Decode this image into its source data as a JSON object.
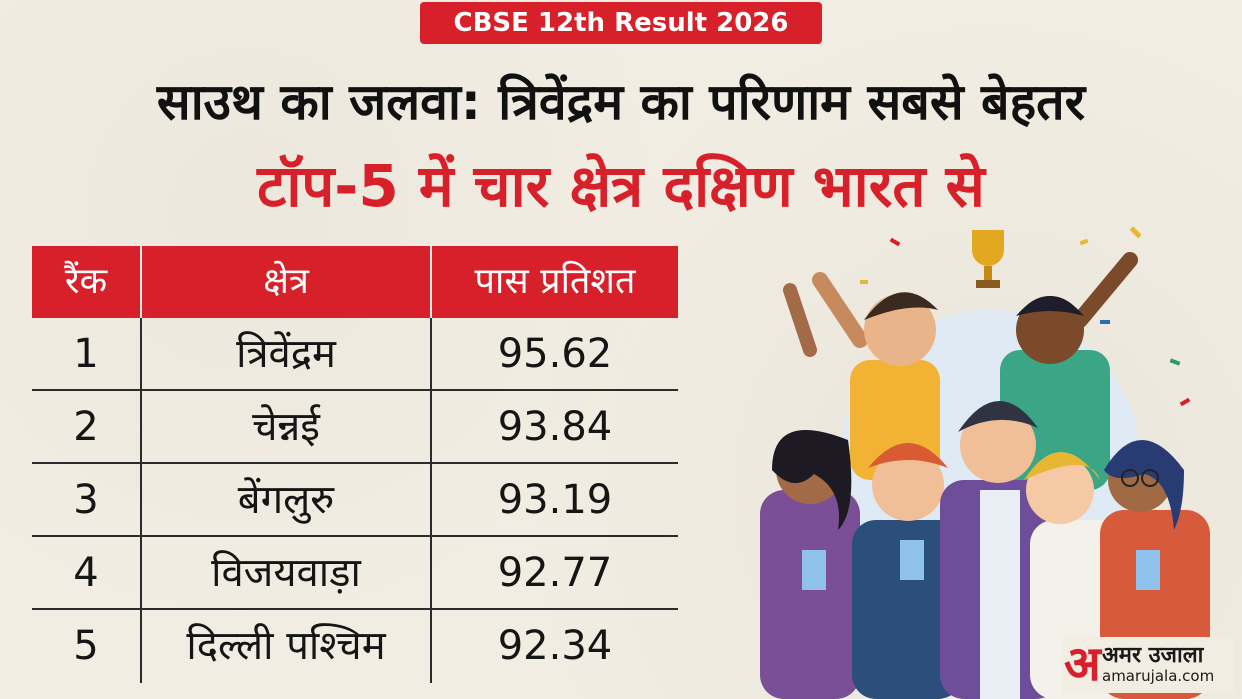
{
  "badge": "CBSE 12th Result 2026",
  "headline": "साउथ का जलवा: त्रिवेंद्रम का परिणाम सबसे बेहतर",
  "subheadline": "टॉप-5 में चार क्षेत्र दक्षिण भारत से",
  "table": {
    "headers": [
      "रैंक",
      "क्षेत्र",
      "पास प्रतिशत"
    ],
    "rows": [
      [
        "1",
        "त्रिवेंद्रम",
        "95.62"
      ],
      [
        "2",
        "चेन्नई",
        "93.84"
      ],
      [
        "3",
        "बेंगलुरु",
        "93.19"
      ],
      [
        "4",
        "विजयवाड़ा",
        "92.77"
      ],
      [
        "5",
        "दिल्ली पश्चिम",
        "92.34"
      ]
    ]
  },
  "logo": {
    "mark": "अ",
    "name": "अमर उजाला",
    "url": "amarujala.com"
  },
  "colors": {
    "accent": "#d7202a",
    "background": "#f2ede2",
    "text": "#111111"
  }
}
